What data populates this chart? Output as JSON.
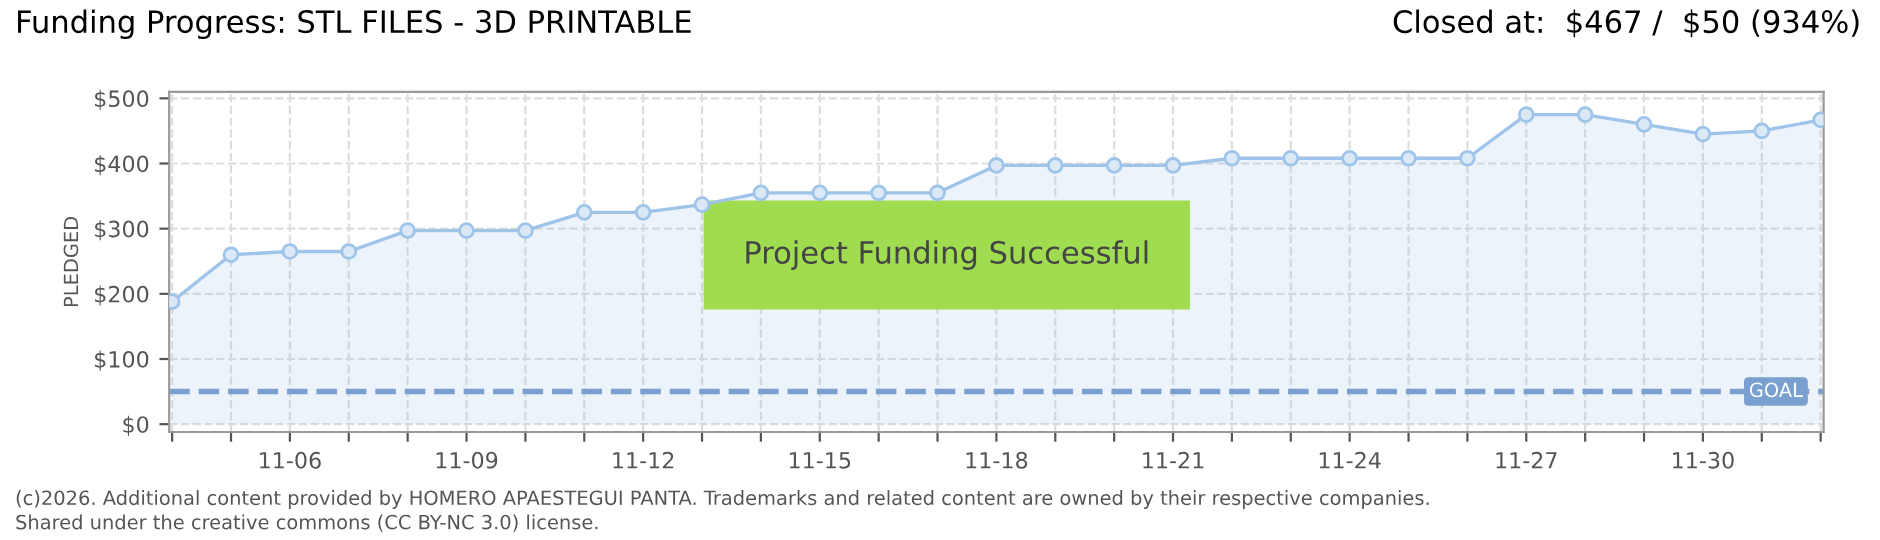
{
  "chart_data": {
    "type": "area",
    "title": "Funding Progress: STL FILES - 3D PRINTABLE",
    "subtitle": "Closed at:  $467 /  $50 (934%)",
    "ylabel": "PLEDGED",
    "categories": [
      null,
      null,
      "11-06",
      null,
      null,
      "11-09",
      null,
      null,
      "11-12",
      null,
      null,
      "11-15",
      null,
      null,
      "11-18",
      null,
      null,
      "11-21",
      null,
      null,
      "11-24",
      null,
      null,
      "11-27",
      null,
      null,
      "11-30",
      null,
      null
    ],
    "series": [
      {
        "color": "#9ec4ea",
        "values": [
          188,
          260,
          265,
          265,
          297,
          297,
          297,
          325,
          325,
          337,
          355,
          355,
          355,
          355,
          397,
          397,
          397,
          397,
          408,
          408,
          408,
          408,
          408,
          475,
          475,
          460,
          445,
          450,
          467
        ]
      }
    ],
    "ylim": [
      -12,
      510
    ],
    "yticks": [
      {
        "value": 0,
        "label": "$0"
      },
      {
        "value": 100,
        "label": "$100"
      },
      {
        "value": 200,
        "label": "$200"
      },
      {
        "value": 300,
        "label": "$300"
      },
      {
        "value": 400,
        "label": "$400"
      },
      {
        "value": 500,
        "label": "$500"
      }
    ],
    "ref_lines": [
      {
        "axis": "y",
        "value": 50,
        "label": "GOAL",
        "color": "#7aa0d0",
        "line_style": "dashed"
      }
    ],
    "grid": true,
    "marker": "circle",
    "legend": false,
    "annotations": [
      "Project Funding Successful",
      "(c)2026. Additional content provided by HOMERO APAESTEGUI PANTA. Trademarks and related content are owned by their respective companies.",
      "Shared under the creative commons (CC BY-NC 3.0) license."
    ]
  }
}
